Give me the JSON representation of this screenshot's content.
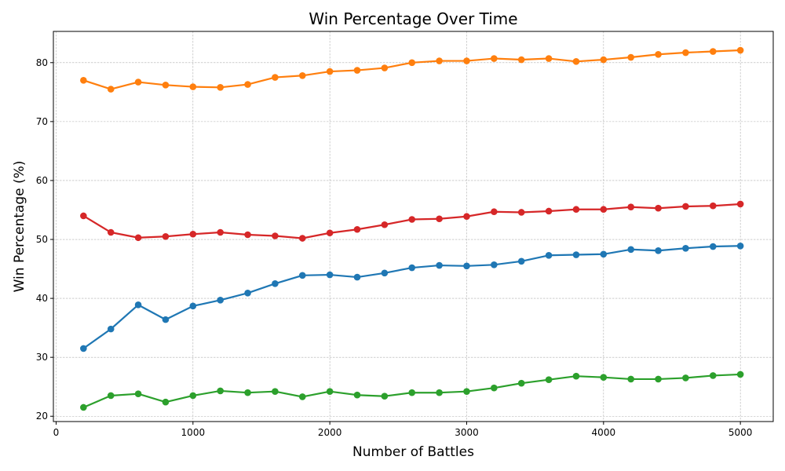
{
  "chart_data": {
    "type": "line",
    "title": "Win Percentage Over Time",
    "xlabel": "Number of Battles",
    "ylabel": "Win Percentage (%)",
    "xlim": [
      -20,
      5240
    ],
    "ylim": [
      19.1,
      85.3
    ],
    "xticks": [
      0,
      1000,
      2000,
      3000,
      4000,
      5000
    ],
    "yticks": [
      20,
      30,
      40,
      50,
      60,
      70,
      80
    ],
    "grid": true,
    "legend": "none",
    "x": [
      200,
      400,
      600,
      800,
      1000,
      1200,
      1400,
      1600,
      1800,
      2000,
      2200,
      2400,
      2600,
      2800,
      3000,
      3200,
      3400,
      3600,
      3800,
      4000,
      4200,
      4400,
      4600,
      4800,
      5000
    ],
    "series": [
      {
        "color": "#1f77b4",
        "values": [
          31.5,
          34.8,
          38.9,
          36.4,
          38.7,
          39.7,
          40.9,
          42.5,
          43.9,
          44.0,
          43.6,
          44.3,
          45.2,
          45.6,
          45.5,
          45.7,
          46.3,
          47.3,
          47.4,
          47.5,
          48.3,
          48.1,
          48.5,
          48.8,
          48.9
        ]
      },
      {
        "color": "#ff7f0e",
        "values": [
          77.0,
          75.5,
          76.7,
          76.2,
          75.9,
          75.8,
          76.3,
          77.5,
          77.8,
          78.5,
          78.7,
          79.1,
          80.0,
          80.3,
          80.3,
          80.7,
          80.5,
          80.7,
          80.2,
          80.5,
          80.9,
          81.4,
          81.7,
          81.9,
          82.1
        ]
      },
      {
        "color": "#2ca02c",
        "values": [
          21.5,
          23.5,
          23.8,
          22.4,
          23.5,
          24.3,
          24.0,
          24.2,
          23.3,
          24.2,
          23.6,
          23.4,
          24.0,
          24.0,
          24.2,
          24.8,
          25.6,
          26.2,
          26.8,
          26.6,
          26.3,
          26.3,
          26.5,
          26.9,
          27.1
        ]
      },
      {
        "color": "#d62728",
        "values": [
          54.0,
          51.2,
          50.3,
          50.5,
          50.9,
          51.2,
          50.8,
          50.6,
          50.2,
          51.1,
          51.7,
          52.5,
          53.4,
          53.5,
          53.9,
          54.7,
          54.6,
          54.8,
          55.1,
          55.1,
          55.5,
          55.3,
          55.6,
          55.7,
          56.0
        ]
      }
    ]
  }
}
